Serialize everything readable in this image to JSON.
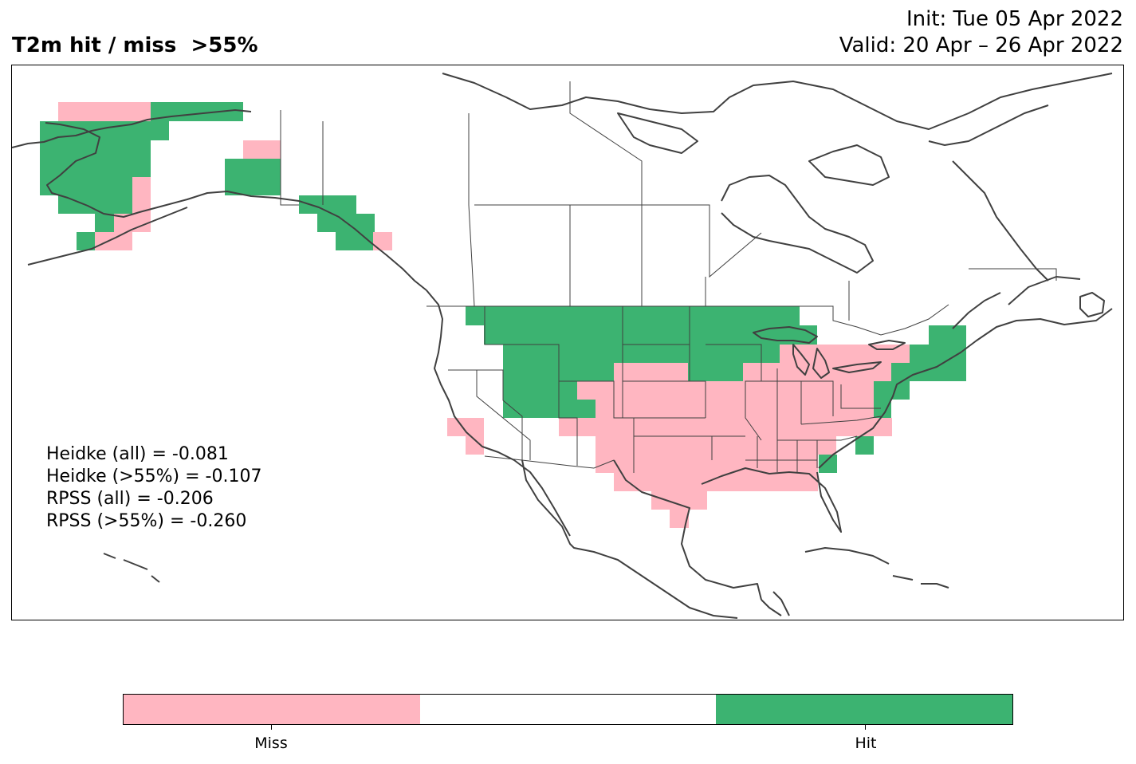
{
  "title": {
    "left": "T2m hit / miss  >55%",
    "init": "Init: Tue 05 Apr 2022",
    "valid": "Valid: 20 Apr – 26 Apr 2022"
  },
  "stats": {
    "heidke_all": "Heidke (all) = -0.081",
    "heidke_55": "Heidke (>55%) = -0.107",
    "rpss_all": "RPSS (all) = -0.206",
    "rpss_55": "RPSS (>55%) = -0.260"
  },
  "colors": {
    "miss": "#ffb6c1",
    "neutral": "#ffffff",
    "hit": "#3cb371",
    "coast": "#404040"
  },
  "colorbar": {
    "miss_label": "Miss",
    "hit_label": "Hit"
  }
}
